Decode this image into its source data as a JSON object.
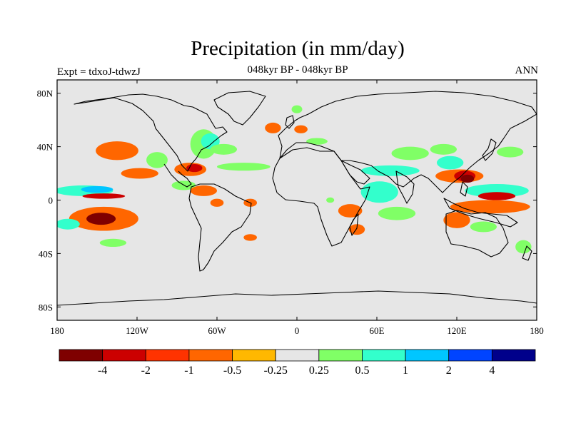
{
  "chart_data": {
    "type": "heatmap",
    "title": "Precipitation (in mm/day)",
    "subtitle_center": "048kyr BP - 048kyr BP",
    "subtitle_left": "Expt = tdxoJ-tdwzJ",
    "subtitle_right": "ANN",
    "x_ticks": [
      {
        "value": -180,
        "label": "180"
      },
      {
        "value": -120,
        "label": "120W"
      },
      {
        "value": -60,
        "label": "60W"
      },
      {
        "value": 0,
        "label": "0"
      },
      {
        "value": 60,
        "label": "60E"
      },
      {
        "value": 120,
        "label": "120E"
      },
      {
        "value": 180,
        "label": "180"
      }
    ],
    "y_ticks": [
      {
        "value": 80,
        "label": "80N"
      },
      {
        "value": 40,
        "label": "40N"
      },
      {
        "value": 0,
        "label": "0"
      },
      {
        "value": -40,
        "label": "40S"
      },
      {
        "value": -80,
        "label": "80S"
      }
    ],
    "xlim": [
      -180,
      180
    ],
    "ylim": [
      -90,
      90
    ],
    "colorbar": {
      "colors": [
        "#7f0000",
        "#cc0000",
        "#ff3300",
        "#ff6600",
        "#ffb800",
        "#e6e6e6",
        "#80ff66",
        "#33ffcc",
        "#00c6ff",
        "#0044ff",
        "#00008b"
      ],
      "labels": [
        "-4",
        "-2",
        "-1",
        "-0.5",
        "-0.25",
        "0.25",
        "0.5",
        "1",
        "2",
        "4"
      ]
    },
    "anomaly_regions": [
      {
        "lon": -160,
        "lat": 7,
        "rx": 22,
        "ry": 4,
        "level": 1
      },
      {
        "lon": -150,
        "lat": 8,
        "rx": 12,
        "ry": 2.5,
        "level": 3
      },
      {
        "lon": -145,
        "lat": 3,
        "rx": 16,
        "ry": 2,
        "level": -2
      },
      {
        "lon": -145,
        "lat": -14,
        "rx": 26,
        "ry": 9,
        "level": -1
      },
      {
        "lon": -147,
        "lat": -14,
        "rx": 11,
        "ry": 4.5,
        "level": -3
      },
      {
        "lon": -172,
        "lat": -18,
        "rx": 9,
        "ry": 4,
        "level": 1
      },
      {
        "lon": -138,
        "lat": -32,
        "rx": 10,
        "ry": 3,
        "level": 0.5
      },
      {
        "lon": -135,
        "lat": 37,
        "rx": 16,
        "ry": 7,
        "level": -1
      },
      {
        "lon": -118,
        "lat": 20,
        "rx": 14,
        "ry": 4,
        "level": -1
      },
      {
        "lon": -105,
        "lat": 30,
        "rx": 8,
        "ry": 6,
        "level": 0.5
      },
      {
        "lon": -80,
        "lat": 23,
        "rx": 12,
        "ry": 5,
        "level": -1
      },
      {
        "lon": -77,
        "lat": 24,
        "rx": 6,
        "ry": 3,
        "level": -2
      },
      {
        "lon": -85,
        "lat": 11,
        "rx": 9,
        "ry": 3.5,
        "level": 0.5
      },
      {
        "lon": -70,
        "lat": 7,
        "rx": 10,
        "ry": 4,
        "level": -1
      },
      {
        "lon": -70,
        "lat": 42,
        "rx": 10,
        "ry": 11,
        "level": 0.5
      },
      {
        "lon": -65,
        "lat": 44,
        "rx": 7,
        "ry": 6,
        "level": 1
      },
      {
        "lon": -55,
        "lat": 38,
        "rx": 10,
        "ry": 4,
        "level": 0.5
      },
      {
        "lon": -60,
        "lat": -2,
        "rx": 5,
        "ry": 3,
        "level": -1
      },
      {
        "lon": -40,
        "lat": 25,
        "rx": 20,
        "ry": 3,
        "level": 0.5
      },
      {
        "lon": -35,
        "lat": -2,
        "rx": 5,
        "ry": 3,
        "level": -1
      },
      {
        "lon": -35,
        "lat": -28,
        "rx": 5,
        "ry": 2.5,
        "level": -1
      },
      {
        "lon": -18,
        "lat": 54,
        "rx": 6,
        "ry": 4,
        "level": -1
      },
      {
        "lon": 0,
        "lat": 68,
        "rx": 4,
        "ry": 3,
        "level": 0.5
      },
      {
        "lon": 3,
        "lat": 53,
        "rx": 5,
        "ry": 3,
        "level": -1
      },
      {
        "lon": 15,
        "lat": 44,
        "rx": 8,
        "ry": 2.5,
        "level": 0.5
      },
      {
        "lon": 25,
        "lat": 0,
        "rx": 3,
        "ry": 2,
        "level": 0.5
      },
      {
        "lon": 40,
        "lat": -8,
        "rx": 9,
        "ry": 5,
        "level": -1
      },
      {
        "lon": 45,
        "lat": -22,
        "rx": 6,
        "ry": 4,
        "level": -1
      },
      {
        "lon": 62,
        "lat": 6,
        "rx": 14,
        "ry": 8,
        "level": 1
      },
      {
        "lon": 70,
        "lat": 22,
        "rx": 22,
        "ry": 4,
        "level": 1
      },
      {
        "lon": 75,
        "lat": -10,
        "rx": 14,
        "ry": 5,
        "level": 0.5
      },
      {
        "lon": 85,
        "lat": 35,
        "rx": 14,
        "ry": 5,
        "level": 0.5
      },
      {
        "lon": 110,
        "lat": 38,
        "rx": 10,
        "ry": 4,
        "level": 0.5
      },
      {
        "lon": 115,
        "lat": 28,
        "rx": 10,
        "ry": 5,
        "level": 1
      },
      {
        "lon": 122,
        "lat": 18,
        "rx": 18,
        "ry": 5,
        "level": -1
      },
      {
        "lon": 126,
        "lat": 18,
        "rx": 8,
        "ry": 4,
        "level": -2
      },
      {
        "lon": 128,
        "lat": 16,
        "rx": 5,
        "ry": 3,
        "level": -3
      },
      {
        "lon": 150,
        "lat": 7,
        "rx": 24,
        "ry": 5,
        "level": 1
      },
      {
        "lon": 150,
        "lat": 3,
        "rx": 14,
        "ry": 3,
        "level": -2
      },
      {
        "lon": 145,
        "lat": -5,
        "rx": 30,
        "ry": 5,
        "level": -1
      },
      {
        "lon": 120,
        "lat": -15,
        "rx": 10,
        "ry": 6,
        "level": -1
      },
      {
        "lon": 140,
        "lat": -20,
        "rx": 10,
        "ry": 4,
        "level": 0.5
      },
      {
        "lon": 160,
        "lat": 36,
        "rx": 10,
        "ry": 4,
        "level": 0.5
      },
      {
        "lon": 170,
        "lat": -35,
        "rx": 6,
        "ry": 5,
        "level": 0.5
      }
    ],
    "grid": false,
    "legend_position": "bottom"
  }
}
